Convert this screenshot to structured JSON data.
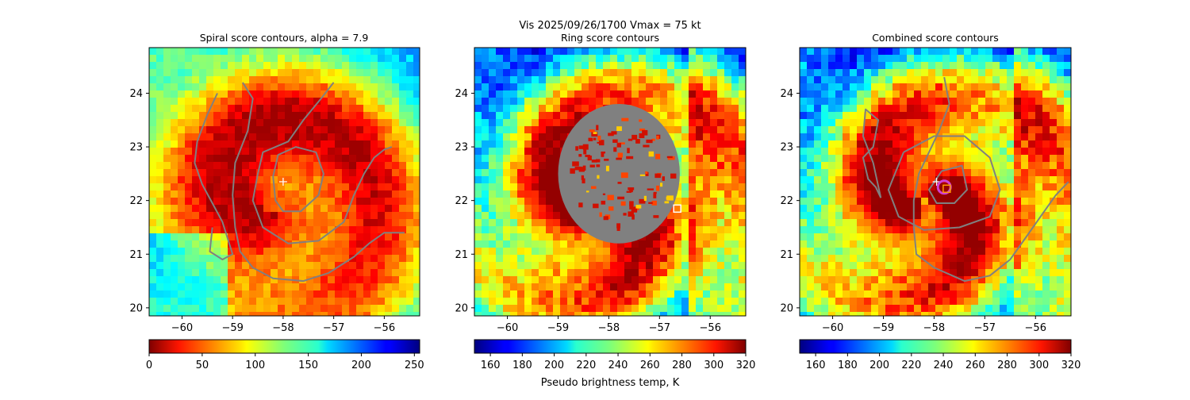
{
  "figure": {
    "suptitle": "Vis  2025/09/26/1700    Vmax = 75 kt",
    "colors": {
      "contour": "#808080",
      "marker_white": "#ffffff",
      "ring_magenta": "#d040d0",
      "square_orange": "#ff9900"
    }
  },
  "chart_data": [
    {
      "type": "heatmap",
      "title": "Spiral score contours, alpha =  7.9",
      "xlim": [
        -60.65,
        -55.3
      ],
      "ylim": [
        19.85,
        24.85
      ],
      "xticks": [
        -60,
        -59,
        -58,
        -57,
        -56
      ],
      "yticks": [
        20,
        21,
        22,
        23,
        24
      ],
      "center": {
        "lon": -58.2,
        "lat": 22.0
      },
      "field": "vis_spiral",
      "colorbar": {
        "min": 0,
        "max": 255,
        "ticks": [
          0,
          50,
          100,
          150,
          200,
          250
        ],
        "label": "",
        "colormap": "jet"
      },
      "markers": [
        {
          "kind": "plus",
          "lon": -58.0,
          "lat": 22.35
        }
      ],
      "contours": [
        [
          [
            -59.3,
            24.0
          ],
          [
            -59.5,
            23.6
          ],
          [
            -59.7,
            23.1
          ],
          [
            -59.75,
            22.7
          ],
          [
            -59.6,
            22.3
          ],
          [
            -59.4,
            21.95
          ],
          [
            -59.2,
            21.6
          ],
          [
            -59.1,
            21.3
          ],
          [
            -59.0,
            21.0
          ],
          [
            -59.2,
            20.9
          ],
          [
            -59.45,
            21.05
          ],
          [
            -59.4,
            21.5
          ]
        ],
        [
          [
            -58.8,
            24.2
          ],
          [
            -58.6,
            23.9
          ],
          [
            -58.7,
            23.3
          ],
          [
            -58.95,
            22.7
          ],
          [
            -59.0,
            22.1
          ],
          [
            -58.95,
            21.5
          ],
          [
            -58.85,
            21.05
          ],
          [
            -58.6,
            20.75
          ],
          [
            -58.2,
            20.55
          ],
          [
            -57.6,
            20.5
          ],
          [
            -57.1,
            20.65
          ],
          [
            -56.6,
            20.95
          ],
          [
            -56.3,
            21.2
          ],
          [
            -56.0,
            21.4
          ],
          [
            -55.6,
            21.4
          ]
        ],
        [
          [
            -57.0,
            24.2
          ],
          [
            -57.25,
            23.9
          ],
          [
            -57.6,
            23.5
          ],
          [
            -57.9,
            23.1
          ],
          [
            -58.4,
            22.9
          ],
          [
            -58.5,
            22.5
          ],
          [
            -58.6,
            22.0
          ],
          [
            -58.4,
            21.5
          ],
          [
            -57.9,
            21.2
          ],
          [
            -57.3,
            21.25
          ],
          [
            -56.8,
            21.6
          ],
          [
            -56.6,
            22.1
          ],
          [
            -56.4,
            22.5
          ],
          [
            -56.2,
            22.8
          ],
          [
            -56.0,
            22.95
          ],
          [
            -55.85,
            23.0
          ]
        ],
        [
          [
            -58.2,
            22.45
          ],
          [
            -58.1,
            22.85
          ],
          [
            -57.75,
            23.0
          ],
          [
            -57.35,
            22.9
          ],
          [
            -57.2,
            22.5
          ],
          [
            -57.3,
            22.1
          ],
          [
            -57.65,
            21.8
          ],
          [
            -58.0,
            21.8
          ],
          [
            -58.15,
            22.0
          ],
          [
            -58.2,
            22.45
          ]
        ]
      ]
    },
    {
      "type": "heatmap",
      "title": "Ring score contours",
      "xlim": [
        -60.65,
        -55.3
      ],
      "ylim": [
        19.85,
        24.85
      ],
      "xticks": [
        -60,
        -59,
        -58,
        -57,
        -56
      ],
      "yticks": [
        20,
        21,
        22,
        23,
        24
      ],
      "center": {
        "lon": -58.2,
        "lat": 22.0
      },
      "field": "ir_ring",
      "blob": {
        "lon": -57.8,
        "lat": 22.5,
        "rx_deg": 1.2,
        "ry_deg": 1.3
      },
      "colorbar": {
        "min": 150,
        "max": 320,
        "ticks": [
          160,
          180,
          200,
          220,
          240,
          260,
          280,
          300,
          320
        ],
        "label": "Pseudo brightness temp, K",
        "colormap": "jet_r"
      },
      "markers": [
        {
          "kind": "square",
          "lon": -56.65,
          "lat": 21.85
        }
      ],
      "contours": []
    },
    {
      "type": "heatmap",
      "title": "Combined score contours",
      "xlim": [
        -60.65,
        -55.3
      ],
      "ylim": [
        19.85,
        24.85
      ],
      "xticks": [
        -60,
        -59,
        -58,
        -57,
        -56
      ],
      "yticks": [
        20,
        21,
        22,
        23,
        24
      ],
      "center": {
        "lon": -58.2,
        "lat": 22.0
      },
      "field": "ir_ring",
      "colorbar": {
        "min": 150,
        "max": 320,
        "ticks": [
          160,
          180,
          200,
          220,
          240,
          260,
          280,
          300,
          320
        ],
        "label": "",
        "colormap": "jet_r"
      },
      "markers": [
        {
          "kind": "plus",
          "lon": -57.95,
          "lat": 22.35
        },
        {
          "kind": "ring",
          "lon": -57.8,
          "lat": 22.25
        },
        {
          "kind": "square",
          "lon": -57.75,
          "lat": 22.22
        }
      ],
      "contours": [
        [
          [
            -57.8,
            24.3
          ],
          [
            -57.7,
            23.8
          ],
          [
            -57.9,
            23.3
          ],
          [
            -58.1,
            22.9
          ],
          [
            -58.3,
            22.5
          ],
          [
            -58.4,
            22.0
          ],
          [
            -58.4,
            21.5
          ],
          [
            -58.35,
            21.0
          ],
          [
            -58.0,
            20.75
          ],
          [
            -57.4,
            20.5
          ],
          [
            -56.9,
            20.6
          ],
          [
            -56.5,
            20.9
          ],
          [
            -56.2,
            21.3
          ],
          [
            -55.9,
            21.7
          ],
          [
            -55.6,
            22.1
          ],
          [
            -55.35,
            22.35
          ]
        ],
        [
          [
            -59.05,
            22.05
          ],
          [
            -59.2,
            22.7
          ],
          [
            -59.4,
            23.2
          ],
          [
            -59.35,
            23.7
          ],
          [
            -59.1,
            23.5
          ],
          [
            -59.2,
            23.0
          ],
          [
            -59.4,
            22.8
          ],
          [
            -59.3,
            22.4
          ],
          [
            -59.15,
            22.25
          ],
          [
            -59.05,
            22.05
          ]
        ],
        [
          [
            -58.6,
            22.9
          ],
          [
            -58.0,
            23.2
          ],
          [
            -57.4,
            23.2
          ],
          [
            -56.9,
            22.8
          ],
          [
            -56.7,
            22.2
          ],
          [
            -56.9,
            21.7
          ],
          [
            -57.5,
            21.5
          ],
          [
            -58.2,
            21.45
          ],
          [
            -58.7,
            21.7
          ],
          [
            -58.9,
            22.2
          ],
          [
            -58.6,
            22.9
          ]
        ],
        [
          [
            -57.85,
            22.55
          ],
          [
            -57.45,
            22.65
          ],
          [
            -57.35,
            22.2
          ],
          [
            -57.6,
            21.95
          ],
          [
            -57.95,
            21.95
          ],
          [
            -58.1,
            22.2
          ],
          [
            -57.85,
            22.55
          ]
        ]
      ]
    }
  ]
}
